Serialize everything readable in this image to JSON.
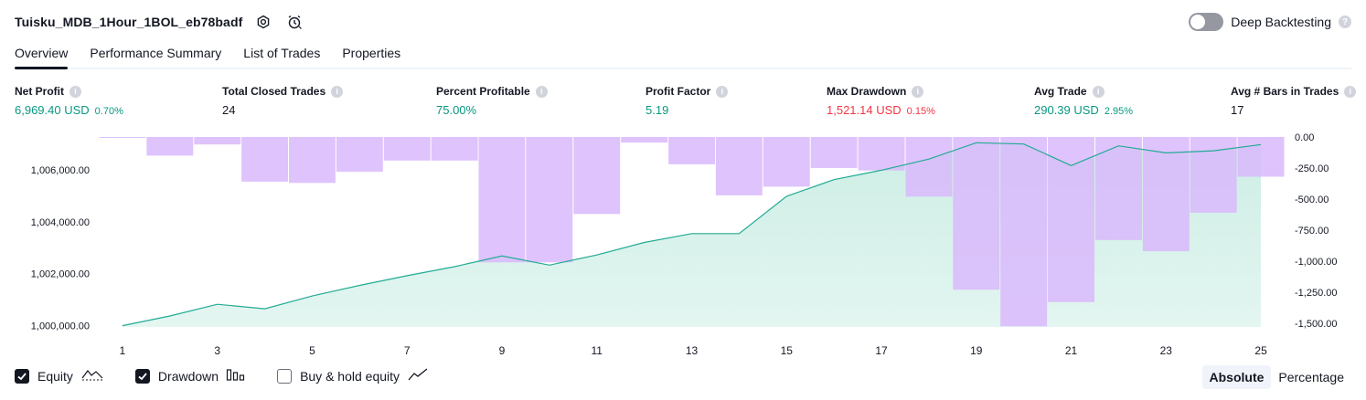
{
  "header": {
    "title": "Tuisku_MDB_1Hour_1BOL_eb78badf",
    "deep_backtesting_label": "Deep Backtesting",
    "help_glyph": "?"
  },
  "tabs": [
    {
      "label": "Overview"
    },
    {
      "label": "Performance Summary"
    },
    {
      "label": "List of Trades"
    },
    {
      "label": "Properties"
    }
  ],
  "metrics": [
    {
      "label": "Net Profit",
      "value": "6,969.40 USD",
      "pct": "0.70%",
      "color": "#089981"
    },
    {
      "label": "Total Closed Trades",
      "value": "24",
      "pct": "",
      "color": "#131722"
    },
    {
      "label": "Percent Profitable",
      "value": "75.00%",
      "pct": "",
      "color": "#089981"
    },
    {
      "label": "Profit Factor",
      "value": "5.19",
      "pct": "",
      "color": "#089981"
    },
    {
      "label": "Max Drawdown",
      "value": "1,521.14 USD",
      "pct": "0.15%",
      "color": "#f23645"
    },
    {
      "label": "Avg Trade",
      "value": "290.39 USD",
      "pct": "2.95%",
      "color": "#089981"
    },
    {
      "label": "Avg # Bars in Trades",
      "value": "17",
      "pct": "",
      "color": "#131722"
    }
  ],
  "legend": {
    "equity_label": "Equity",
    "equity_checked": true,
    "drawdown_label": "Drawdown",
    "drawdown_checked": true,
    "buyhold_label": "Buy & hold equity",
    "buyhold_checked": false
  },
  "view_toggle": {
    "absolute_label": "Absolute",
    "percentage_label": "Percentage",
    "selected": "Absolute"
  },
  "colors": {
    "equity_line": "#22ab94",
    "equity_fill": "#cdeee5",
    "drawdown_bar": "#d9b8fb",
    "text_green": "#089981",
    "text_red": "#f23645"
  },
  "chart_data": {
    "type": "area",
    "x_ticks": [
      "1",
      "3",
      "5",
      "7",
      "9",
      "11",
      "13",
      "15",
      "17",
      "19",
      "21",
      "23",
      "25"
    ],
    "equity_axis_ticks": [
      "1,000,000.00",
      "1,002,000.00",
      "1,004,000.00",
      "1,006,000.00"
    ],
    "drawdown_axis_ticks": [
      "0.00",
      "-250.00",
      "-500.00",
      "-750.00",
      "-1,000.00",
      "-1,250.00",
      "-1,500.00"
    ],
    "equity_ylim": [
      999950,
      1007260
    ],
    "drawdown_ylim": [
      -1530,
      0
    ],
    "series": [
      {
        "name": "Equity",
        "type": "line",
        "x": [
          1,
          2,
          3,
          4,
          5,
          6,
          7,
          8,
          9,
          10,
          11,
          12,
          13,
          14,
          15,
          16,
          17,
          18,
          19,
          20,
          21,
          22,
          23,
          24,
          25
        ],
        "values": [
          1000000,
          1000370,
          1000820,
          1000650,
          1001140,
          1001550,
          1001920,
          1002270,
          1002680,
          1002330,
          1002720,
          1003200,
          1003540,
          1003540,
          1004980,
          1005620,
          1005980,
          1006410,
          1007040,
          1006990,
          1006160,
          1006920,
          1006650,
          1006730,
          1006970
        ]
      },
      {
        "name": "Drawdown",
        "type": "bar",
        "x": [
          1,
          2,
          3,
          4,
          5,
          6,
          7,
          8,
          9,
          10,
          11,
          12,
          13,
          14,
          15,
          16,
          17,
          18,
          19,
          20,
          21,
          22,
          23,
          24,
          25
        ],
        "values": [
          -5,
          -150,
          -60,
          -360,
          -370,
          -280,
          -190,
          -190,
          -1010,
          -1010,
          -620,
          -45,
          -220,
          -470,
          -400,
          -250,
          -270,
          -480,
          -1230,
          -1525,
          -1330,
          -830,
          -920,
          -610,
          -320
        ]
      }
    ]
  }
}
